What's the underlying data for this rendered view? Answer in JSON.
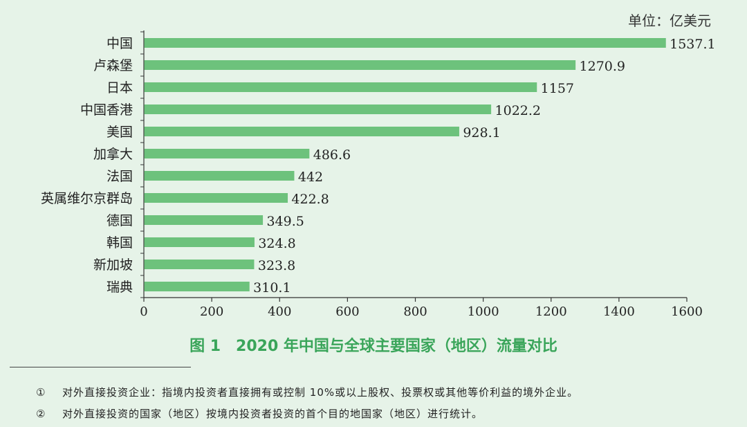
{
  "unit_label": "单位：亿美元",
  "caption": "图 1　2020 年中国与全球主要国家（地区）流量对比",
  "footnotes": [
    {
      "num": "①",
      "text": "对外直接投资企业：指境内投资者直接拥有或控制 10%或以上股权、投票权或其他等价利益的境外企业。"
    },
    {
      "num": "②",
      "text": "对外直接投资的国家（地区）按境内投资者投资的首个目的地国家（地区）进行统计。"
    }
  ],
  "colors": {
    "bar": "#6dc27c",
    "background": "#e6f3e8",
    "caption": "#3aa55a",
    "axis": "#333333"
  },
  "chart_data": {
    "type": "bar",
    "orientation": "horizontal",
    "title": "2020 年中国与全球主要国家（地区）流量对比",
    "xlabel": "",
    "ylabel": "",
    "xlim": [
      0,
      1600
    ],
    "xticks": [
      "0",
      "200",
      "400",
      "600",
      "800",
      "1000",
      "1200",
      "1400",
      "1600"
    ],
    "categories": [
      "中国",
      "卢森堡",
      "日本",
      "中国香港",
      "美国",
      "加拿大",
      "法国",
      "英属维尔京群岛",
      "德国",
      "韩国",
      "新加坡",
      "瑞典"
    ],
    "values": [
      1537.1,
      1270.9,
      1157,
      1022.2,
      928.1,
      486.6,
      442,
      422.8,
      349.5,
      324.8,
      323.8,
      310.1
    ],
    "labels": [
      "1537.1",
      "1270.9",
      "1157",
      "1022.2",
      "928.1",
      "486.6",
      "442",
      "422.8",
      "349.5",
      "324.8",
      "323.8",
      "310.1"
    ],
    "unit": "亿美元"
  }
}
